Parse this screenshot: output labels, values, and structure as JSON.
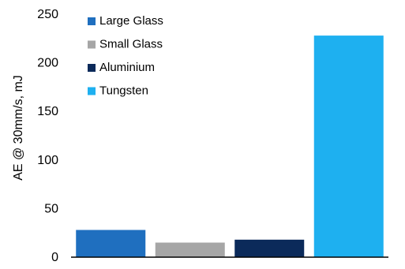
{
  "chart_data": {
    "type": "bar",
    "title": "",
    "xlabel": "",
    "ylabel": "AE @ 30mm/s, mJ",
    "ylim": [
      0,
      250
    ],
    "yticks": [
      0,
      50,
      100,
      150,
      200,
      250
    ],
    "grid": false,
    "legend_position": "top-left",
    "series": [
      {
        "name": "Large Glass",
        "value": 28,
        "color": "#1F6FBF"
      },
      {
        "name": "Small Glass",
        "value": 15,
        "color": "#A6A6A6"
      },
      {
        "name": "Aluminium",
        "value": 18,
        "color": "#0B2A5A"
      },
      {
        "name": "Tungsten",
        "value": 228,
        "color": "#1EB0F0"
      }
    ]
  }
}
